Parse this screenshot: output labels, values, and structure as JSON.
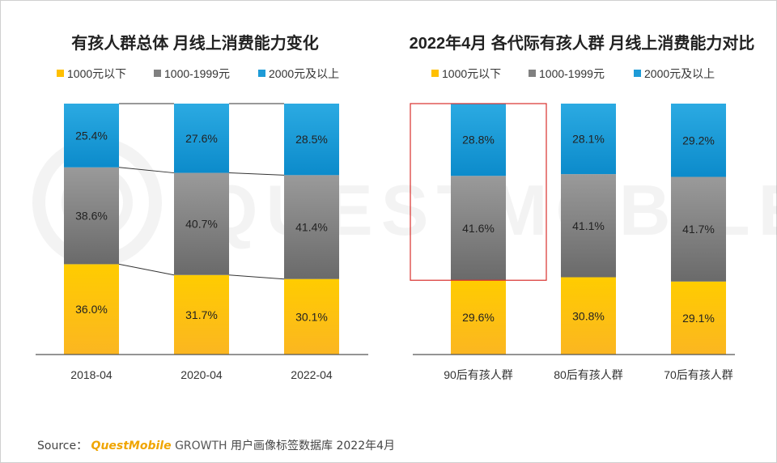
{
  "chart_data": [
    {
      "type": "bar",
      "stacked": true,
      "percent": true,
      "title": "有孩人群总体 月线上消费能力变化",
      "categories": [
        "2018-04",
        "2020-04",
        "2022-04"
      ],
      "series": [
        {
          "name": "1000元以下",
          "values": [
            36.0,
            31.7,
            30.1
          ],
          "labels": [
            "36.0%",
            "31.7%",
            "30.1%"
          ]
        },
        {
          "name": "1000-1999元",
          "values": [
            38.6,
            40.7,
            41.4
          ],
          "labels": [
            "38.6%",
            "40.7%",
            "41.4%"
          ]
        },
        {
          "name": "2000元及以上",
          "values": [
            25.4,
            27.6,
            28.5
          ],
          "labels": [
            "25.4%",
            "27.6%",
            "28.5%"
          ]
        }
      ],
      "connectors": true,
      "ylim": [
        0,
        100
      ],
      "xlabel": "",
      "ylabel": ""
    },
    {
      "type": "bar",
      "stacked": true,
      "percent": true,
      "title": "2022年4月 各代际有孩人群 月线上消费能力对比",
      "categories": [
        "90后有孩人群",
        "80后有孩人群",
        "70后有孩人群"
      ],
      "series": [
        {
          "name": "1000元以下",
          "values": [
            29.6,
            30.8,
            29.1
          ],
          "labels": [
            "29.6%",
            "30.8%",
            "29.1%"
          ]
        },
        {
          "name": "1000-1999元",
          "values": [
            41.6,
            41.1,
            41.7
          ],
          "labels": [
            "41.6%",
            "41.1%",
            "41.7%"
          ]
        },
        {
          "name": "2000元及以上",
          "values": [
            28.8,
            28.1,
            29.2
          ],
          "labels": [
            "28.8%",
            "28.1%",
            "29.2%"
          ]
        }
      ],
      "highlight_category": 0,
      "ylim": [
        0,
        100
      ],
      "xlabel": "",
      "ylabel": ""
    }
  ],
  "colors": {
    "low": "#FFC000",
    "mid": "#808080",
    "high": "#1E9BD7",
    "highlight": "#D9302C"
  },
  "watermark": "QUESTMOBILE",
  "footer": {
    "source_label": "Source：",
    "brand": "QuestMobile",
    "growth": "GROWTH",
    "text": "用户画像标签数据库 2022年4月"
  }
}
